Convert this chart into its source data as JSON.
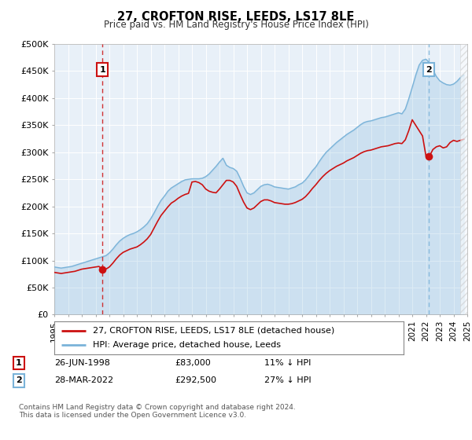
{
  "title": "27, CROFTON RISE, LEEDS, LS17 8LE",
  "subtitle": "Price paid vs. HM Land Registry's House Price Index (HPI)",
  "ylabel_ticks": [
    "£0",
    "£50K",
    "£100K",
    "£150K",
    "£200K",
    "£250K",
    "£300K",
    "£350K",
    "£400K",
    "£450K",
    "£500K"
  ],
  "ylim": [
    0,
    500000
  ],
  "xlim_start": 1995.0,
  "xlim_end": 2025.0,
  "background_color": "#e8f0f8",
  "plot_bg_color": "#e8f0f8",
  "hpi_color": "#7ab3d9",
  "price_color": "#cc1111",
  "dashed_line1_color": "#cc1111",
  "dashed_line2_color": "#7ab3d9",
  "marker1_date": 1998.5,
  "marker1_price": 83000,
  "marker2_date": 2022.2,
  "marker2_price": 292500,
  "legend_label1": "27, CROFTON RISE, LEEDS, LS17 8LE (detached house)",
  "legend_label2": "HPI: Average price, detached house, Leeds",
  "footer": "Contains HM Land Registry data © Crown copyright and database right 2024.\nThis data is licensed under the Open Government Licence v3.0.",
  "hpi_data_x": [
    1995.0,
    1995.25,
    1995.5,
    1995.75,
    1996.0,
    1996.25,
    1996.5,
    1996.75,
    1997.0,
    1997.25,
    1997.5,
    1997.75,
    1998.0,
    1998.25,
    1998.5,
    1998.75,
    1999.0,
    1999.25,
    1999.5,
    1999.75,
    2000.0,
    2000.25,
    2000.5,
    2000.75,
    2001.0,
    2001.25,
    2001.5,
    2001.75,
    2002.0,
    2002.25,
    2002.5,
    2002.75,
    2003.0,
    2003.25,
    2003.5,
    2003.75,
    2004.0,
    2004.25,
    2004.5,
    2004.75,
    2005.0,
    2005.25,
    2005.5,
    2005.75,
    2006.0,
    2006.25,
    2006.5,
    2006.75,
    2007.0,
    2007.25,
    2007.5,
    2007.75,
    2008.0,
    2008.25,
    2008.5,
    2008.75,
    2009.0,
    2009.25,
    2009.5,
    2009.75,
    2010.0,
    2010.25,
    2010.5,
    2010.75,
    2011.0,
    2011.25,
    2011.5,
    2011.75,
    2012.0,
    2012.25,
    2012.5,
    2012.75,
    2013.0,
    2013.25,
    2013.5,
    2013.75,
    2014.0,
    2014.25,
    2014.5,
    2014.75,
    2015.0,
    2015.25,
    2015.5,
    2015.75,
    2016.0,
    2016.25,
    2016.5,
    2016.75,
    2017.0,
    2017.25,
    2017.5,
    2017.75,
    2018.0,
    2018.25,
    2018.5,
    2018.75,
    2019.0,
    2019.25,
    2019.5,
    2019.75,
    2020.0,
    2020.25,
    2020.5,
    2020.75,
    2021.0,
    2021.25,
    2021.5,
    2021.75,
    2022.0,
    2022.25,
    2022.5,
    2022.75,
    2023.0,
    2023.25,
    2023.5,
    2023.75,
    2024.0,
    2024.25,
    2024.5,
    2024.75
  ],
  "hpi_data_y": [
    88000,
    87000,
    86000,
    87000,
    88000,
    89000,
    91000,
    93000,
    95000,
    97000,
    99000,
    101000,
    103000,
    105000,
    107000,
    109000,
    114000,
    121000,
    129000,
    136000,
    141000,
    145000,
    148000,
    150000,
    153000,
    157000,
    162000,
    168000,
    177000,
    188000,
    200000,
    211000,
    219000,
    228000,
    234000,
    238000,
    242000,
    246000,
    249000,
    250000,
    251000,
    251000,
    251000,
    252000,
    255000,
    260000,
    267000,
    274000,
    282000,
    289000,
    276000,
    272000,
    270000,
    265000,
    252000,
    237000,
    225000,
    222000,
    225000,
    231000,
    237000,
    240000,
    241000,
    239000,
    236000,
    235000,
    234000,
    233000,
    232000,
    234000,
    236000,
    240000,
    243000,
    249000,
    257000,
    266000,
    273000,
    283000,
    292000,
    300000,
    306000,
    312000,
    318000,
    323000,
    328000,
    333000,
    337000,
    341000,
    346000,
    351000,
    355000,
    357000,
    358000,
    360000,
    362000,
    364000,
    365000,
    367000,
    369000,
    371000,
    373000,
    371000,
    380000,
    399000,
    420000,
    442000,
    461000,
    470000,
    472000,
    465000,
    452000,
    440000,
    432000,
    428000,
    425000,
    424000,
    426000,
    431000,
    438000,
    443000
  ],
  "price_data_x": [
    1995.0,
    1995.25,
    1995.5,
    1995.75,
    1996.0,
    1996.25,
    1996.5,
    1996.75,
    1997.0,
    1997.25,
    1997.5,
    1997.75,
    1998.0,
    1998.25,
    1998.5,
    1998.75,
    1999.0,
    1999.25,
    1999.5,
    1999.75,
    2000.0,
    2000.25,
    2000.5,
    2000.75,
    2001.0,
    2001.25,
    2001.5,
    2001.75,
    2002.0,
    2002.25,
    2002.5,
    2002.75,
    2003.0,
    2003.25,
    2003.5,
    2003.75,
    2004.0,
    2004.25,
    2004.5,
    2004.75,
    2005.0,
    2005.25,
    2005.5,
    2005.75,
    2006.0,
    2006.25,
    2006.5,
    2006.75,
    2007.0,
    2007.25,
    2007.5,
    2007.75,
    2008.0,
    2008.25,
    2008.5,
    2008.75,
    2009.0,
    2009.25,
    2009.5,
    2009.75,
    2010.0,
    2010.25,
    2010.5,
    2010.75,
    2011.0,
    2011.25,
    2011.5,
    2011.75,
    2012.0,
    2012.25,
    2012.5,
    2012.75,
    2013.0,
    2013.25,
    2013.5,
    2013.75,
    2014.0,
    2014.25,
    2014.5,
    2014.75,
    2015.0,
    2015.25,
    2015.5,
    2015.75,
    2016.0,
    2016.25,
    2016.5,
    2016.75,
    2017.0,
    2017.25,
    2017.5,
    2017.75,
    2018.0,
    2018.25,
    2018.5,
    2018.75,
    2019.0,
    2019.25,
    2019.5,
    2019.75,
    2020.0,
    2020.25,
    2020.5,
    2020.75,
    2021.0,
    2021.25,
    2021.5,
    2021.75,
    2022.0,
    2022.25,
    2022.5,
    2022.75,
    2023.0,
    2023.25,
    2023.5,
    2023.75,
    2024.0,
    2024.25,
    2024.5,
    2024.75
  ],
  "price_data_y": [
    78000,
    77000,
    76000,
    77000,
    78000,
    79000,
    80000,
    82000,
    84000,
    85000,
    86000,
    87000,
    88000,
    89000,
    83000,
    84000,
    88000,
    95000,
    103000,
    110000,
    115000,
    118000,
    121000,
    123000,
    125000,
    129000,
    134000,
    140000,
    148000,
    160000,
    172000,
    183000,
    191000,
    199000,
    206000,
    210000,
    215000,
    219000,
    222000,
    224000,
    245000,
    246000,
    244000,
    240000,
    232000,
    228000,
    226000,
    225000,
    232000,
    240000,
    248000,
    248000,
    245000,
    237000,
    222000,
    208000,
    197000,
    194000,
    197000,
    203000,
    209000,
    212000,
    212000,
    210000,
    207000,
    206000,
    205000,
    204000,
    204000,
    205000,
    207000,
    210000,
    213000,
    218000,
    225000,
    233000,
    240000,
    248000,
    255000,
    261000,
    266000,
    270000,
    274000,
    277000,
    280000,
    284000,
    287000,
    290000,
    294000,
    298000,
    301000,
    303000,
    304000,
    306000,
    308000,
    310000,
    311000,
    312000,
    314000,
    316000,
    317000,
    316000,
    323000,
    340000,
    360000,
    350000,
    340000,
    330000,
    292500,
    292500,
    305000,
    310000,
    312000,
    308000,
    310000,
    318000,
    322000,
    320000,
    322000,
    324000
  ],
  "hatch_region_start": 2024.5,
  "hatch_region_end": 2025.0
}
